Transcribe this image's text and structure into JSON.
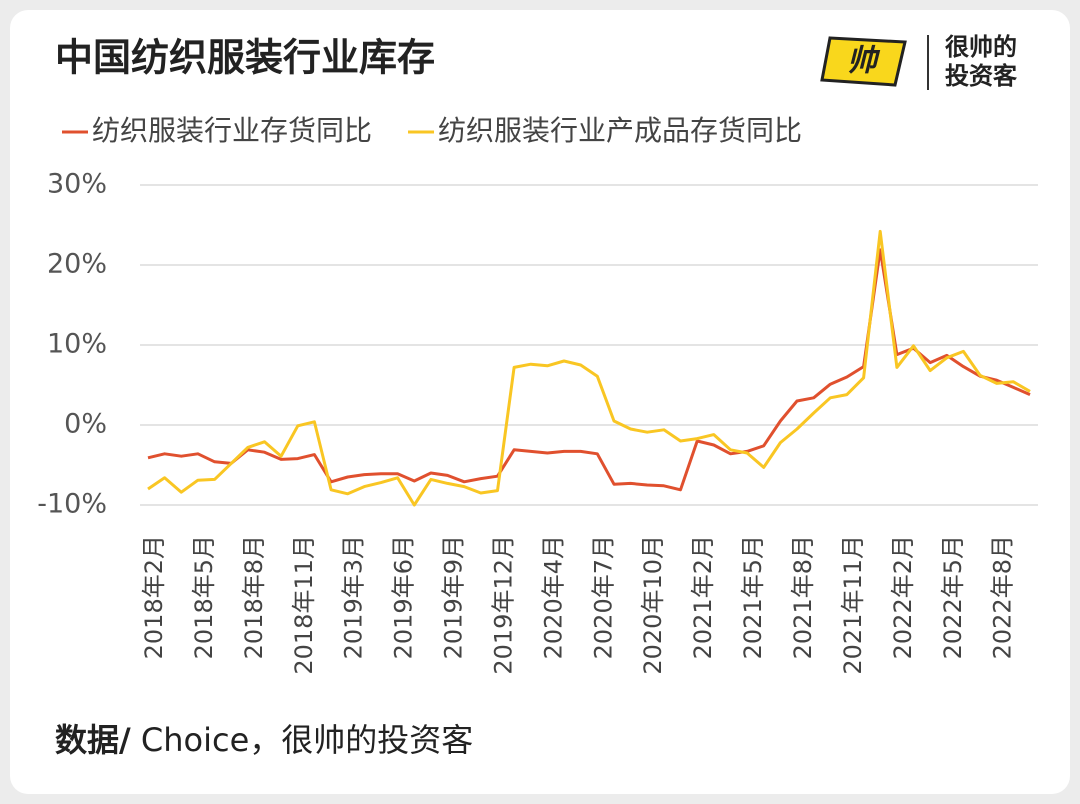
{
  "chart_data": {
    "type": "line",
    "title": "中国纺织服装行业库存",
    "logo": {
      "line1": "很帅的",
      "line2": "投资客"
    },
    "source_label": "数据/",
    "source": " Choice，很帅的投资客",
    "categories": [
      "2018年2月",
      null,
      null,
      "2018年5月",
      null,
      null,
      "2018年8月",
      null,
      null,
      "2018年11月",
      null,
      null,
      "2019年3月",
      null,
      null,
      "2019年6月",
      null,
      null,
      "2019年9月",
      null,
      null,
      "2019年12月",
      null,
      null,
      "2020年4月",
      null,
      null,
      "2020年7月",
      null,
      null,
      "2020年10月",
      null,
      null,
      "2021年2月",
      null,
      null,
      "2021年5月",
      null,
      null,
      "2021年8月",
      null,
      null,
      "2021年11月",
      null,
      null,
      "2022年2月",
      null,
      null,
      "2022年5月",
      null,
      null,
      "2022年8月",
      null,
      null
    ],
    "series": [
      {
        "name": "纺织服装行业存货同比",
        "color": "#e0502e",
        "values": [
          -4.1,
          -3.6,
          -3.9,
          -3.6,
          -4.6,
          -4.8,
          -3.1,
          -3.4,
          -4.3,
          -4.2,
          -3.7,
          -7.1,
          -6.5,
          -6.2,
          -6.1,
          -6.1,
          -7.0,
          -6.0,
          -6.3,
          -7.1,
          -6.7,
          -6.4,
          -3.1,
          -3.3,
          -3.5,
          -3.3,
          -3.3,
          -3.6,
          -7.4,
          -7.3,
          -7.5,
          -7.6,
          -8.1,
          -2.0,
          -2.5,
          -3.6,
          -3.3,
          -2.6,
          0.5,
          3.0,
          3.4,
          5.1,
          6.0,
          7.3,
          21.9,
          8.8,
          9.6,
          7.8,
          8.7,
          7.3,
          6.1,
          5.6,
          4.7,
          3.8
        ]
      },
      {
        "name": "纺织服装行业产成品存货同比",
        "color": "#f9c623",
        "values": [
          -8.0,
          -6.6,
          -8.4,
          -6.9,
          -6.8,
          -4.8,
          -2.8,
          -2.1,
          -3.9,
          -0.1,
          0.4,
          -8.1,
          -8.6,
          -7.7,
          -7.2,
          -6.6,
          -10.0,
          -6.8,
          -7.3,
          -7.7,
          -8.5,
          -8.2,
          7.2,
          7.6,
          7.4,
          8.0,
          7.5,
          6.1,
          0.5,
          -0.5,
          -0.9,
          -0.6,
          -2.0,
          -1.7,
          -1.2,
          -3.1,
          -3.5,
          -5.3,
          -2.2,
          -0.5,
          1.5,
          3.4,
          3.8,
          5.9,
          24.2,
          7.2,
          9.9,
          6.8,
          8.4,
          9.2,
          6.2,
          5.2,
          5.4,
          4.2
        ]
      }
    ],
    "ylim": [
      -10,
      30
    ],
    "yticks": [
      {
        "value": -10,
        "label": "-10%"
      },
      {
        "value": 0,
        "label": "0%"
      },
      {
        "value": 10,
        "label": "10%"
      },
      {
        "value": 20,
        "label": "20%"
      },
      {
        "value": 30,
        "label": "30%"
      }
    ],
    "grid": true
  }
}
